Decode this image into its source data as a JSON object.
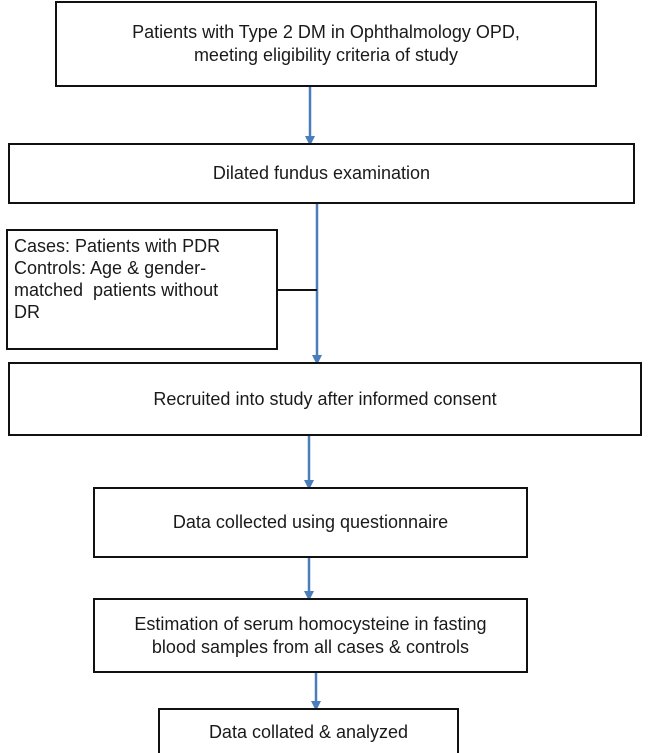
{
  "colors": {
    "arrow": "#4a7ebb",
    "box_border": "#111111",
    "text": "#1a1a1a",
    "background": "#ffffff"
  },
  "steps": {
    "step1": {
      "line1": "Patients with Type 2 DM in Ophthalmology OPD,",
      "line2": "meeting eligibility criteria of study"
    },
    "step2": {
      "line1": "Dilated fundus examination"
    },
    "side_note": {
      "line1": "Cases: Patients with PDR",
      "line2": "Controls: Age & gender-",
      "line3": "matched  patients without",
      "line4": "DR"
    },
    "step3": {
      "line1": "Recruited into study after informed consent"
    },
    "step4": {
      "line1": "Data collected using questionnaire"
    },
    "step5": {
      "line1": "Estimation of serum homocysteine in fasting",
      "line2": "blood samples from all cases & controls"
    },
    "step6": {
      "line1": "Data collated & analyzed"
    }
  }
}
